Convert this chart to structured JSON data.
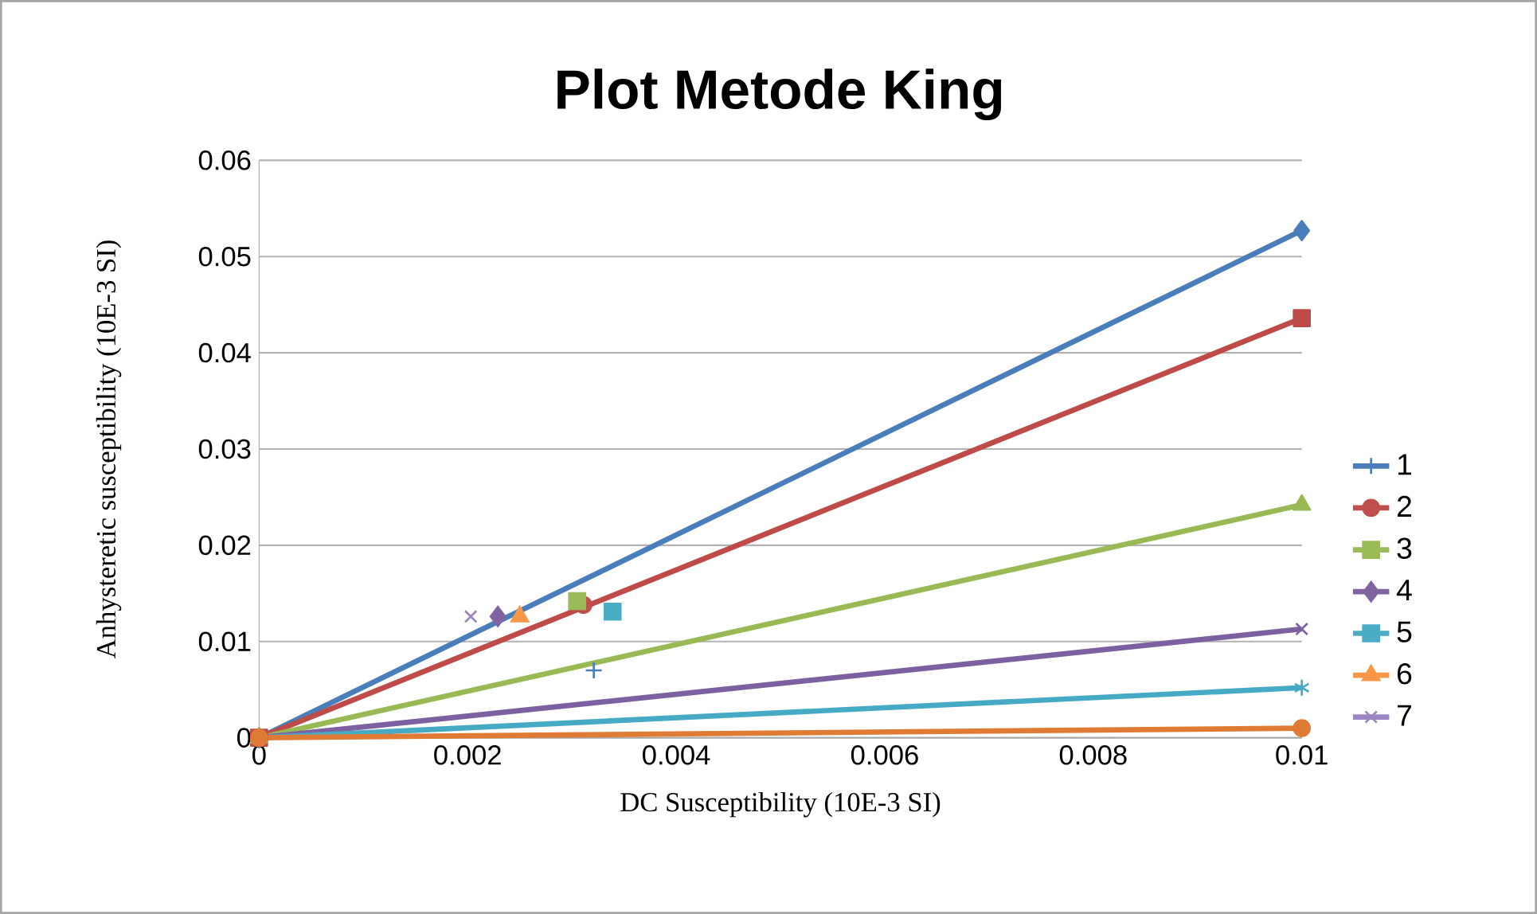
{
  "chart_data": {
    "type": "scatter",
    "title": "Plot Metode King",
    "xlabel": "DC Susceptibility (10E-3 SI)",
    "ylabel": "Anhysteretic susceptibility (10E-3 SI)",
    "xlim": [
      0,
      0.01
    ],
    "xticks": [
      0,
      0.002,
      0.004,
      0.006,
      0.008,
      0.01
    ],
    "ylim": [
      0,
      0.06
    ],
    "yticks": [
      0,
      0.01,
      0.02,
      0.03,
      0.04,
      0.05,
      0.06
    ],
    "grid": "y",
    "legend": "right",
    "series": [
      {
        "name": "1",
        "color": "#4a7ebb",
        "marker": "plus",
        "x": [
          0.00321
        ],
        "values": [
          0.007
        ]
      },
      {
        "name": "2",
        "color": "#c0504d",
        "marker": "circle",
        "x": [
          0.00311
        ],
        "values": [
          0.0138
        ]
      },
      {
        "name": "3",
        "color": "#9bbb59",
        "marker": "square",
        "x": [
          0.00305
        ],
        "values": [
          0.0142
        ]
      },
      {
        "name": "4",
        "color": "#8064a2",
        "marker": "diamond",
        "x": [
          0.00229
        ],
        "values": [
          0.0126
        ]
      },
      {
        "name": "5",
        "color": "#4bacc6",
        "marker": "square",
        "x": [
          0.00339
        ],
        "values": [
          0.0131
        ]
      },
      {
        "name": "6",
        "color": "#f79646",
        "marker": "triangle",
        "x": [
          0.0025
        ],
        "values": [
          0.0126
        ]
      },
      {
        "name": "7",
        "color": "#9b85c4",
        "marker": "x",
        "x": [
          0.00203
        ],
        "values": [
          0.0126
        ]
      },
      {
        "type": "line",
        "color": "#4a7ebb",
        "marker": "diamond",
        "x": [
          0,
          0.01
        ],
        "values": [
          0,
          0.0527
        ]
      },
      {
        "type": "line",
        "color": "#be4b48",
        "marker": "square",
        "x": [
          0,
          0.01
        ],
        "values": [
          0,
          0.0436
        ]
      },
      {
        "type": "line",
        "color": "#98b954",
        "marker": "triangle",
        "x": [
          0,
          0.01
        ],
        "values": [
          0,
          0.0242
        ]
      },
      {
        "type": "line",
        "color": "#7d60a0",
        "marker": "x",
        "x": [
          0,
          0.01
        ],
        "values": [
          0,
          0.0113
        ]
      },
      {
        "type": "line",
        "color": "#46aac5",
        "marker": "cross",
        "x": [
          0,
          0.01
        ],
        "values": [
          0,
          0.0052
        ]
      },
      {
        "type": "line",
        "color": "#e07b35",
        "marker": "circle",
        "x": [
          0,
          0.01
        ],
        "values": [
          0,
          0.001
        ]
      }
    ]
  }
}
